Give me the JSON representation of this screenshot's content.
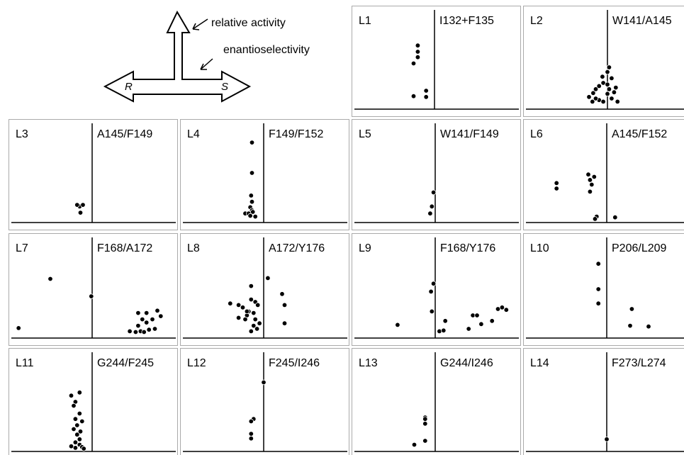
{
  "legend": {
    "relative_activity": "relative activity",
    "enantioselectivity": "enantioselectivity",
    "left_label": "R",
    "right_label": "S"
  },
  "chart_data": [
    {
      "type": "scatter",
      "panel": "L1",
      "positions": "I132+F135",
      "points": [
        [
          -0.2,
          0.78
        ],
        [
          -0.2,
          0.7
        ],
        [
          -0.2,
          0.63
        ],
        [
          -0.25,
          0.55
        ],
        [
          -0.25,
          0.13
        ],
        [
          -0.1,
          0.12
        ],
        [
          -0.1,
          0.2
        ]
      ]
    },
    {
      "type": "scatter",
      "panel": "L2",
      "positions": "W141/A145",
      "points": [
        [
          -0.18,
          0.06
        ],
        [
          -0.1,
          0.08
        ],
        [
          -0.05,
          0.06
        ],
        [
          -0.22,
          0.12
        ],
        [
          -0.17,
          0.17
        ],
        [
          -0.14,
          0.22
        ],
        [
          -0.1,
          0.26
        ],
        [
          -0.05,
          0.3
        ],
        [
          0.0,
          0.28
        ],
        [
          0.02,
          0.22
        ],
        [
          0.0,
          0.16
        ],
        [
          0.05,
          0.1
        ],
        [
          0.08,
          0.18
        ],
        [
          0.1,
          0.24
        ],
        [
          0.05,
          0.36
        ],
        [
          0.0,
          0.44
        ],
        [
          0.02,
          0.5
        ],
        [
          -0.06,
          0.38
        ],
        [
          -0.14,
          0.1
        ],
        [
          0.12,
          0.06
        ]
      ]
    },
    {
      "type": "scatter",
      "panel": "L3",
      "positions": "A145/F149",
      "points": [
        [
          -0.14,
          0.09
        ],
        [
          -0.15,
          0.17
        ],
        [
          -0.18,
          0.19
        ],
        [
          -0.11,
          0.19
        ]
      ]
    },
    {
      "type": "scatter",
      "panel": "L4",
      "positions": "F149/F152",
      "points": [
        [
          -0.14,
          0.99
        ],
        [
          -0.14,
          0.6
        ],
        [
          -0.15,
          0.31
        ],
        [
          -0.14,
          0.23
        ],
        [
          -0.16,
          0.16
        ],
        [
          -0.14,
          0.12
        ],
        [
          -0.22,
          0.08
        ],
        [
          -0.18,
          0.08
        ],
        [
          -0.13,
          0.1
        ],
        [
          -0.1,
          0.04
        ],
        [
          -0.16,
          0.05
        ]
      ]
    },
    {
      "type": "scatter",
      "panel": "L5",
      "positions": "W141/F149",
      "points": [
        [
          -0.02,
          0.35
        ],
        [
          -0.04,
          0.17
        ],
        [
          -0.06,
          0.08
        ]
      ]
    },
    {
      "type": "scatter",
      "panel": "L6",
      "positions": "A145/F152",
      "points": [
        [
          -0.22,
          0.58
        ],
        [
          -0.2,
          0.51
        ],
        [
          -0.6,
          0.47
        ],
        [
          -0.6,
          0.4
        ],
        [
          -0.15,
          0.55
        ],
        [
          -0.18,
          0.45
        ],
        [
          -0.2,
          0.36
        ],
        [
          -0.12,
          0.04
        ],
        [
          -0.14,
          0.01
        ],
        [
          0.1,
          0.03
        ]
      ]
    },
    {
      "type": "scatter",
      "panel": "L7",
      "positions": "F168/A172",
      "points": [
        [
          -0.5,
          0.71
        ],
        [
          -0.01,
          0.49
        ],
        [
          -0.88,
          0.09
        ],
        [
          0.45,
          0.05
        ],
        [
          0.52,
          0.04
        ],
        [
          0.58,
          0.05
        ],
        [
          0.62,
          0.04
        ],
        [
          0.68,
          0.07
        ],
        [
          0.75,
          0.08
        ],
        [
          0.55,
          0.12
        ],
        [
          0.65,
          0.16
        ],
        [
          0.6,
          0.2
        ],
        [
          0.72,
          0.2
        ],
        [
          0.82,
          0.24
        ],
        [
          0.78,
          0.31
        ],
        [
          0.55,
          0.28
        ],
        [
          0.65,
          0.28
        ]
      ]
    },
    {
      "type": "scatter",
      "panel": "L8",
      "positions": "A172/Y176",
      "points": [
        [
          0.05,
          0.72
        ],
        [
          -0.15,
          0.62
        ],
        [
          0.22,
          0.52
        ],
        [
          0.25,
          0.38
        ],
        [
          0.25,
          0.15
        ],
        [
          -0.4,
          0.4
        ],
        [
          -0.3,
          0.38
        ],
        [
          -0.25,
          0.35
        ],
        [
          -0.18,
          0.3
        ],
        [
          -0.12,
          0.28
        ],
        [
          -0.2,
          0.25
        ],
        [
          -0.3,
          0.22
        ],
        [
          -0.22,
          0.2
        ],
        [
          -0.1,
          0.2
        ],
        [
          -0.05,
          0.15
        ],
        [
          -0.12,
          0.12
        ],
        [
          -0.08,
          0.08
        ],
        [
          -0.15,
          0.05
        ],
        [
          -0.2,
          0.3
        ],
        [
          -0.1,
          0.42
        ],
        [
          -0.15,
          0.45
        ],
        [
          -0.07,
          0.38
        ]
      ]
    },
    {
      "type": "scatter",
      "panel": "L9",
      "positions": "F168/Y176",
      "points": [
        [
          -0.02,
          0.65
        ],
        [
          -0.05,
          0.55
        ],
        [
          -0.04,
          0.3
        ],
        [
          -0.45,
          0.13
        ],
        [
          0.05,
          0.05
        ],
        [
          0.1,
          0.06
        ],
        [
          0.12,
          0.18
        ],
        [
          0.4,
          0.08
        ],
        [
          0.45,
          0.25
        ],
        [
          0.5,
          0.25
        ],
        [
          0.55,
          0.14
        ],
        [
          0.68,
          0.18
        ],
        [
          0.75,
          0.33
        ],
        [
          0.8,
          0.35
        ],
        [
          0.85,
          0.32
        ]
      ]
    },
    {
      "type": "scatter",
      "panel": "L10",
      "positions": "P206/L209",
      "points": [
        [
          -0.1,
          0.9
        ],
        [
          -0.1,
          0.58
        ],
        [
          -0.1,
          0.4
        ],
        [
          0.3,
          0.33
        ],
        [
          0.28,
          0.12
        ],
        [
          0.5,
          0.11
        ]
      ]
    },
    {
      "type": "scatter",
      "panel": "L11",
      "positions": "G244/F245",
      "points": [
        [
          -0.15,
          0.72
        ],
        [
          -0.25,
          0.68
        ],
        [
          -0.2,
          0.6
        ],
        [
          -0.22,
          0.55
        ],
        [
          -0.15,
          0.45
        ],
        [
          -0.2,
          0.38
        ],
        [
          -0.12,
          0.35
        ],
        [
          -0.18,
          0.3
        ],
        [
          -0.22,
          0.25
        ],
        [
          -0.14,
          0.22
        ],
        [
          -0.18,
          0.18
        ],
        [
          -0.15,
          0.12
        ],
        [
          -0.2,
          0.08
        ],
        [
          -0.15,
          0.05
        ],
        [
          -0.12,
          0.02
        ],
        [
          -0.1,
          0.0
        ],
        [
          -0.2,
          0.01
        ],
        [
          -0.25,
          0.03
        ]
      ]
    },
    {
      "type": "scatter",
      "panel": "L12",
      "positions": "F245/I246",
      "points": [
        [
          0.0,
          0.85
        ],
        [
          -0.12,
          0.38
        ],
        [
          -0.15,
          0.35
        ],
        [
          -0.15,
          0.19
        ],
        [
          -0.15,
          0.13
        ]
      ]
    },
    {
      "type": "scatter",
      "panel": "L13",
      "positions": "G244/I246",
      "points": [
        [
          -0.12,
          0.4
        ],
        [
          -0.12,
          0.32
        ],
        [
          -0.12,
          0.38
        ],
        [
          -0.12,
          0.1
        ],
        [
          -0.25,
          0.05
        ]
      ]
    },
    {
      "type": "scatter",
      "panel": "L14",
      "positions": "F273/L274",
      "points": [
        [
          0.0,
          0.12
        ]
      ]
    }
  ]
}
